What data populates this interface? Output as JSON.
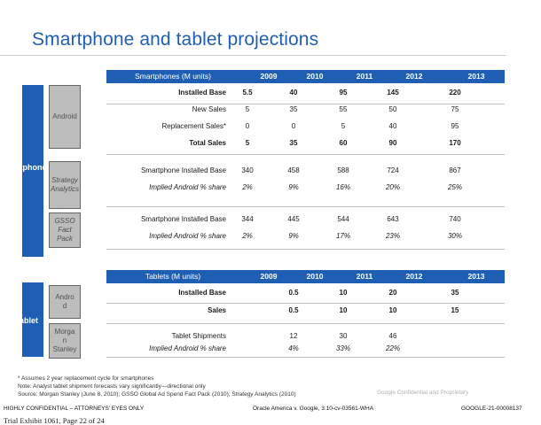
{
  "title": "Smartphone and tablet projections",
  "years": [
    "2009",
    "2010",
    "2011",
    "2012",
    "2013"
  ],
  "smartphones": {
    "header_label": "Smartphones (M units)",
    "section_label": "rtphones",
    "android_box": "Android",
    "strategy_box": "Strategy\nAnalytics",
    "gsso_box": "GSSO\nFact\nPack",
    "android_rows": [
      {
        "label": "Installed Base",
        "values": [
          "5.5",
          "40",
          "95",
          "145",
          "220"
        ]
      },
      {
        "label": "New Sales",
        "values": [
          "5",
          "35",
          "55",
          "50",
          "75"
        ]
      },
      {
        "label": "Replacement Sales*",
        "values": [
          "0",
          "0",
          "5",
          "40",
          "95"
        ]
      },
      {
        "label": "Total Sales",
        "values": [
          "5",
          "35",
          "60",
          "90",
          "170"
        ]
      }
    ],
    "strategy_rows": [
      {
        "label": "Smartphone Installed Base",
        "values": [
          "340",
          "458",
          "588",
          "724",
          "867"
        ]
      },
      {
        "label": "Implied Android % share",
        "values": [
          "2%",
          "9%",
          "16%",
          "20%",
          "25%"
        ]
      }
    ],
    "gsso_rows": [
      {
        "label": "Smartphone Installed Base",
        "values": [
          "344",
          "445",
          "544",
          "643",
          "740"
        ]
      },
      {
        "label": "Implied Android % share",
        "values": [
          "2%",
          "9%",
          "17%",
          "23%",
          "30%"
        ]
      }
    ]
  },
  "tablets": {
    "header_label": "Tablets (M units)",
    "section_label": "ablet",
    "android_box": "Andro\nd",
    "morgan_box": "Morga\nn\nStanley",
    "android_rows": [
      {
        "label": "Installed Base",
        "values": [
          "",
          "0.5",
          "10",
          "20",
          "35"
        ]
      },
      {
        "label": "Sales",
        "values": [
          "",
          "0.5",
          "10",
          "10",
          "15"
        ]
      }
    ],
    "morgan_rows": [
      {
        "label": "Tablet Shipments",
        "values": [
          "",
          "12",
          "30",
          "46",
          ""
        ]
      },
      {
        "label": "Implied Android % share",
        "values": [
          "",
          "4%",
          "33%",
          "22%",
          ""
        ]
      }
    ]
  },
  "footnotes": {
    "line1": "* Assumes 2 year replacement cycle for smartphones",
    "line2": "Note: Analyst tablet shipment forecasts vary significantly—directional only",
    "line3": "Source: Morgan Stanley (June 8, 2010); GSSO Global Ad Spend Fact Pack (2010); Strategy Analytics (2010)",
    "watermark": "Google Confidential and Proprietary"
  },
  "footer": {
    "left": "HIGHLY CONFIDENTIAL – ATTORNEYS' EYES ONLY",
    "center": "Oracle America v. Google, 3:10-cv-03561-WHA",
    "right": "GOOGLE-21-00008137",
    "exhibit": "Trial Exhibit 1061, Page 22 of 24"
  }
}
